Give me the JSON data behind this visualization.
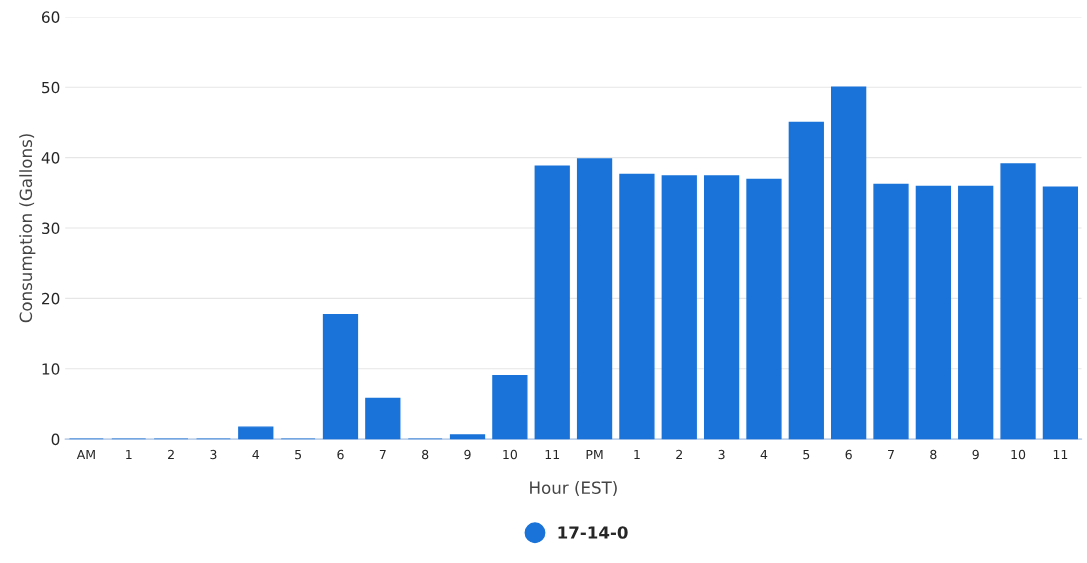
{
  "chart_data": {
    "type": "bar",
    "xlabel": "Hour (EST)",
    "ylabel": "Consumption (Gallons)",
    "categories": [
      "AM",
      "1",
      "2",
      "3",
      "4",
      "5",
      "6",
      "7",
      "8",
      "9",
      "10",
      "11",
      "PM",
      "1",
      "2",
      "3",
      "4",
      "5",
      "6",
      "7",
      "8",
      "9",
      "10",
      "11"
    ],
    "series": [
      {
        "name": "17-14-0",
        "color": "#1a73d8",
        "values": [
          0,
          0,
          0,
          0,
          1.7,
          0,
          17.7,
          5.8,
          0,
          0.6,
          9.0,
          38.8,
          39.8,
          37.6,
          37.4,
          37.4,
          36.9,
          45,
          50,
          36.2,
          35.9,
          35.9,
          39.1,
          35.8
        ]
      }
    ],
    "ylim": [
      0,
      60
    ],
    "yticks": [
      0,
      10,
      20,
      30,
      40,
      50,
      60
    ],
    "grid": "y",
    "legend": "bottom",
    "marker": "circle"
  }
}
